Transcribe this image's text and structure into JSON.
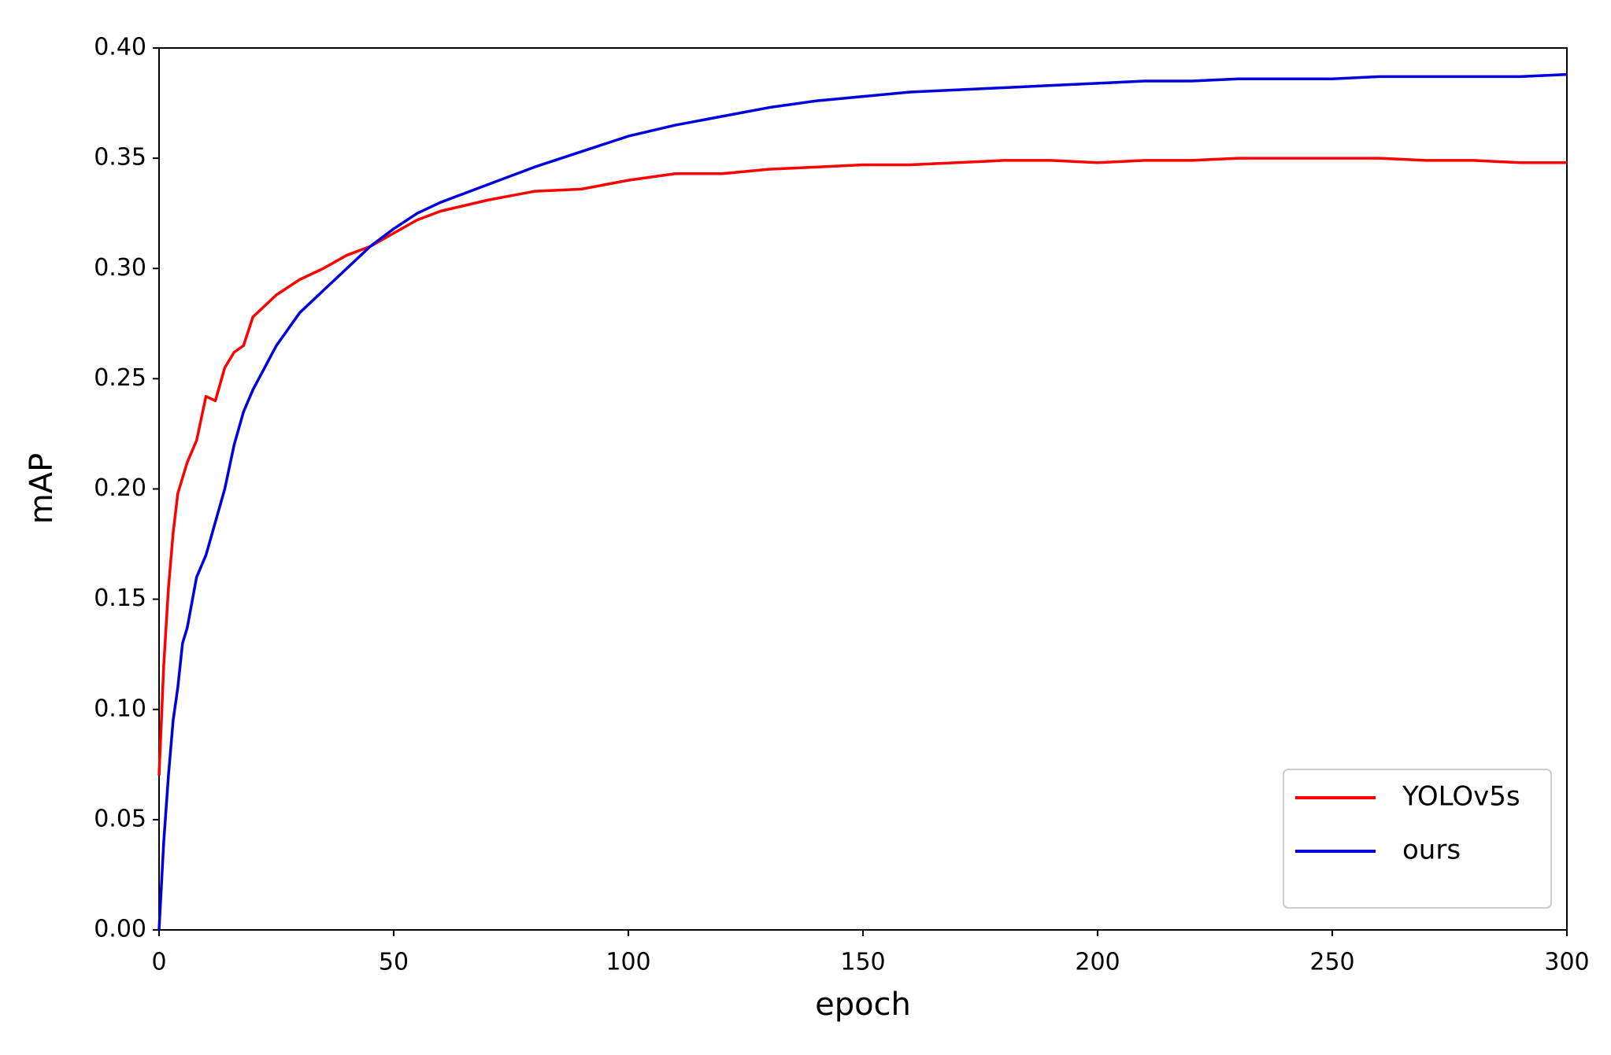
{
  "chart_data": {
    "type": "line",
    "x_label": "epoch",
    "y_label": "mAP",
    "x": [
      0,
      1,
      2,
      3,
      4,
      5,
      6,
      8,
      10,
      12,
      14,
      16,
      18,
      20,
      25,
      30,
      35,
      40,
      45,
      50,
      55,
      60,
      70,
      80,
      90,
      100,
      110,
      120,
      130,
      140,
      150,
      160,
      170,
      180,
      190,
      200,
      210,
      220,
      230,
      240,
      250,
      260,
      270,
      280,
      290,
      300
    ],
    "series": [
      {
        "name": "YOLOv5s",
        "color": "#ff0000",
        "values": [
          0.07,
          0.12,
          0.155,
          0.18,
          0.198,
          0.205,
          0.212,
          0.222,
          0.242,
          0.24,
          0.255,
          0.262,
          0.265,
          0.278,
          0.288,
          0.295,
          0.3,
          0.306,
          0.31,
          0.316,
          0.322,
          0.326,
          0.331,
          0.335,
          0.336,
          0.34,
          0.343,
          0.343,
          0.345,
          0.346,
          0.347,
          0.347,
          0.348,
          0.349,
          0.349,
          0.348,
          0.349,
          0.349,
          0.35,
          0.35,
          0.35,
          0.35,
          0.349,
          0.349,
          0.348,
          0.348
        ]
      },
      {
        "name": "ours",
        "color": "#0000dd",
        "values": [
          0.0,
          0.04,
          0.07,
          0.095,
          0.11,
          0.13,
          0.137,
          0.16,
          0.17,
          0.185,
          0.2,
          0.22,
          0.235,
          0.245,
          0.265,
          0.28,
          0.29,
          0.3,
          0.31,
          0.318,
          0.325,
          0.33,
          0.338,
          0.346,
          0.353,
          0.36,
          0.365,
          0.369,
          0.373,
          0.376,
          0.378,
          0.38,
          0.381,
          0.382,
          0.383,
          0.384,
          0.385,
          0.385,
          0.386,
          0.386,
          0.386,
          0.387,
          0.387,
          0.387,
          0.387,
          0.388
        ]
      }
    ],
    "xlim": [
      0,
      300
    ],
    "xticks": [
      0,
      50,
      100,
      150,
      200,
      250,
      300
    ],
    "ylim": [
      0,
      0.4
    ],
    "yticks": [
      {
        "value": 0,
        "label": "0.00"
      },
      {
        "value": 0.05,
        "label": "0.05"
      },
      {
        "value": 0.1,
        "label": "0.10"
      },
      {
        "value": 0.15,
        "label": "0.15"
      },
      {
        "value": 0.2,
        "label": "0.20"
      },
      {
        "value": 0.25,
        "label": "0.25"
      },
      {
        "value": 0.3,
        "label": "0.30"
      },
      {
        "value": 0.35,
        "label": "0.35"
      },
      {
        "value": 0.4,
        "label": "0.40"
      }
    ],
    "grid": false,
    "legend": "lower right"
  }
}
